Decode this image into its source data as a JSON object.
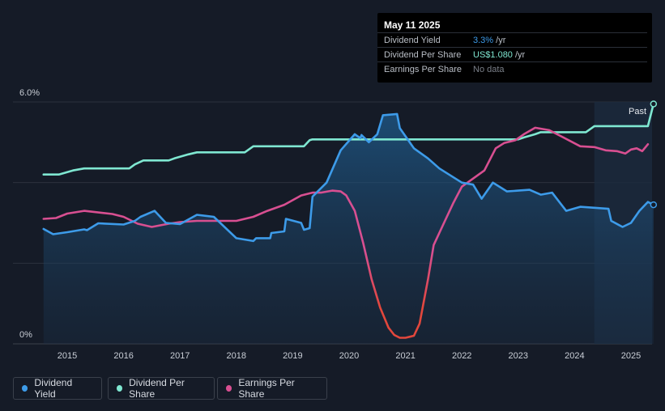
{
  "tooltip": {
    "date": "May 11 2025",
    "rows": [
      {
        "label": "Dividend Yield",
        "value": "3.3%",
        "unit": " /yr",
        "color": "#3d9be9"
      },
      {
        "label": "Dividend Per Share",
        "value": "US$1.080",
        "unit": " /yr",
        "color": "#7fe7d1"
      },
      {
        "label": "Earnings Per Share",
        "value": "No data",
        "unit": "",
        "color": "#7a7f88"
      }
    ]
  },
  "legend": [
    {
      "label": "Dividend Yield",
      "color": "#3d9be9"
    },
    {
      "label": "Dividend Per Share",
      "color": "#7fe7d1"
    },
    {
      "label": "Earnings Per Share",
      "color": "#d84f91"
    }
  ],
  "chart_data": {
    "type": "line",
    "y_tick_labels": [
      "6.0%",
      "0%"
    ],
    "ylim": [
      0,
      6
    ],
    "xlim": [
      2014.5,
      2025.42
    ],
    "x_tick_labels": [
      "2015",
      "2016",
      "2017",
      "2018",
      "2019",
      "2020",
      "2021",
      "2022",
      "2023",
      "2024",
      "2025"
    ],
    "past_label": "Past",
    "forecast_start": 2024.35,
    "grid": "horizontal",
    "colors": {
      "yield": "#3d9be9",
      "dps": "#7fe7d1",
      "eps": "#d84f91",
      "eps_low": "#e2473c"
    },
    "series": [
      {
        "name": "Dividend Yield",
        "key": "yield",
        "x": [
          2014.58,
          2014.75,
          2015.0,
          2015.3,
          2015.35,
          2015.55,
          2016.0,
          2016.2,
          2016.3,
          2016.55,
          2016.75,
          2017.0,
          2017.3,
          2017.6,
          2018.0,
          2018.3,
          2018.35,
          2018.6,
          2018.62,
          2018.85,
          2018.88,
          2019.15,
          2019.2,
          2019.3,
          2019.35,
          2019.6,
          2019.85,
          2020.1,
          2020.2,
          2020.22,
          2020.35,
          2020.5,
          2020.6,
          2020.85,
          2020.9,
          2021.15,
          2021.4,
          2021.6,
          2022.0,
          2022.2,
          2022.35,
          2022.55,
          2022.8,
          2023.0,
          2023.2,
          2023.4,
          2023.6,
          2023.85,
          2024.1,
          2024.6,
          2024.65,
          2024.85,
          2025.0,
          2025.15,
          2025.3,
          2025.4
        ],
        "values": [
          2.85,
          2.72,
          2.77,
          2.84,
          2.82,
          2.99,
          2.96,
          3.05,
          3.15,
          3.3,
          3.0,
          2.97,
          3.2,
          3.15,
          2.62,
          2.55,
          2.62,
          2.62,
          2.75,
          2.79,
          3.1,
          3.0,
          2.83,
          2.87,
          3.65,
          4.0,
          4.8,
          5.2,
          5.1,
          5.18,
          5.0,
          5.2,
          5.67,
          5.7,
          5.35,
          4.85,
          4.6,
          4.35,
          4.0,
          3.95,
          3.6,
          4.0,
          3.78,
          3.8,
          3.82,
          3.7,
          3.75,
          3.3,
          3.4,
          3.35,
          3.05,
          2.9,
          3.0,
          3.3,
          3.52,
          3.45
        ]
      },
      {
        "name": "Dividend Per Share",
        "key": "dps",
        "x": [
          2014.58,
          2014.85,
          2015.1,
          2015.3,
          2015.35,
          2016.1,
          2016.2,
          2016.35,
          2016.8,
          2016.9,
          2017.15,
          2017.3,
          2018.15,
          2018.3,
          2018.37,
          2019.2,
          2019.3,
          2019.35,
          2023.0,
          2023.1,
          2023.3,
          2023.4,
          2024.2,
          2024.3,
          2024.35,
          2025.3,
          2025.4
        ],
        "values": [
          4.2,
          4.2,
          4.3,
          4.35,
          4.35,
          4.35,
          4.45,
          4.55,
          4.55,
          4.6,
          4.7,
          4.75,
          4.75,
          4.9,
          4.9,
          4.9,
          5.05,
          5.07,
          5.07,
          5.12,
          5.2,
          5.25,
          5.25,
          5.35,
          5.4,
          5.4,
          5.95
        ]
      },
      {
        "name": "Earnings Per Share",
        "key": "eps",
        "x": [
          2014.58,
          2014.8,
          2015.0,
          2015.3,
          2015.8,
          2016.0,
          2016.25,
          2016.5,
          2016.8,
          2017.0,
          2017.3,
          2017.6,
          2018.0,
          2018.3,
          2018.55,
          2018.85,
          2019.15,
          2019.35,
          2019.5,
          2019.7,
          2019.85,
          2019.95,
          2020.1,
          2020.25,
          2020.4,
          2020.55,
          2020.7,
          2020.8,
          2020.9,
          2021.0,
          2021.15,
          2021.25,
          2021.4,
          2021.5,
          2021.7,
          2021.85,
          2022.0,
          2022.2,
          2022.4,
          2022.6,
          2022.75,
          2022.95,
          2023.1,
          2023.3,
          2023.55,
          2023.8,
          2024.1,
          2024.35,
          2024.55,
          2024.75,
          2024.9,
          2025.0,
          2025.1,
          2025.2,
          2025.3
        ],
        "values": [
          3.1,
          3.12,
          3.23,
          3.3,
          3.22,
          3.15,
          2.98,
          2.9,
          2.98,
          3.02,
          3.05,
          3.05,
          3.05,
          3.15,
          3.3,
          3.45,
          3.68,
          3.75,
          3.75,
          3.8,
          3.78,
          3.68,
          3.3,
          2.5,
          1.6,
          0.9,
          0.4,
          0.22,
          0.15,
          0.15,
          0.2,
          0.5,
          1.6,
          2.45,
          3.05,
          3.5,
          3.9,
          4.1,
          4.3,
          4.85,
          4.98,
          5.05,
          5.2,
          5.36,
          5.3,
          5.12,
          4.9,
          4.88,
          4.8,
          4.78,
          4.72,
          4.82,
          4.85,
          4.78,
          4.95
        ]
      }
    ]
  }
}
